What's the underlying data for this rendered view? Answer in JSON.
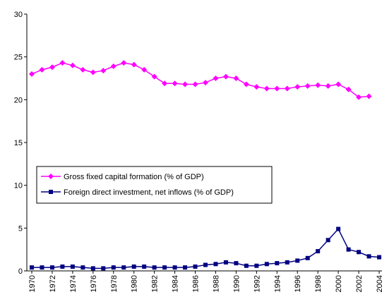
{
  "chart_data": {
    "type": "line",
    "x": [
      1970,
      1971,
      1972,
      1973,
      1974,
      1975,
      1976,
      1977,
      1978,
      1979,
      1980,
      1981,
      1982,
      1983,
      1984,
      1985,
      1986,
      1987,
      1988,
      1989,
      1990,
      1991,
      1992,
      1993,
      1994,
      1995,
      1996,
      1997,
      1998,
      1999,
      2000,
      2001,
      2002,
      2003,
      2004
    ],
    "xlim": [
      1970,
      2004
    ],
    "xticks": [
      1970,
      1972,
      1974,
      1976,
      1978,
      1980,
      1982,
      1984,
      1986,
      1988,
      1990,
      1992,
      1994,
      1996,
      1998,
      2000,
      2002,
      2004
    ],
    "ylim": [
      0,
      30
    ],
    "yticks": [
      0,
      5,
      10,
      15,
      20,
      25,
      30
    ],
    "legend": "left",
    "series": [
      {
        "name": "Gross fixed capital formation (% of GDP)",
        "color": "#ff00ff",
        "marker": "diamond",
        "values": [
          23.0,
          23.5,
          23.8,
          24.3,
          24.0,
          23.5,
          23.2,
          23.4,
          23.9,
          24.3,
          24.1,
          23.5,
          22.7,
          21.9,
          21.9,
          21.8,
          21.8,
          22.0,
          22.5,
          22.7,
          22.5,
          21.8,
          21.5,
          21.3,
          21.3,
          21.3,
          21.5,
          21.6,
          21.7,
          21.6,
          21.8,
          21.2,
          20.3,
          20.4,
          null
        ]
      },
      {
        "name": "Foreign direct investment, net inflows (% of GDP)",
        "color": "#000080",
        "marker": "square",
        "values": [
          0.4,
          0.4,
          0.4,
          0.5,
          0.5,
          0.4,
          0.3,
          0.3,
          0.4,
          0.4,
          0.5,
          0.5,
          0.4,
          0.4,
          0.4,
          0.4,
          0.5,
          0.7,
          0.8,
          1.0,
          0.9,
          0.6,
          0.6,
          0.8,
          0.9,
          1.0,
          1.2,
          1.5,
          2.3,
          3.6,
          4.9,
          2.5,
          2.2,
          1.7,
          1.6
        ]
      }
    ]
  }
}
